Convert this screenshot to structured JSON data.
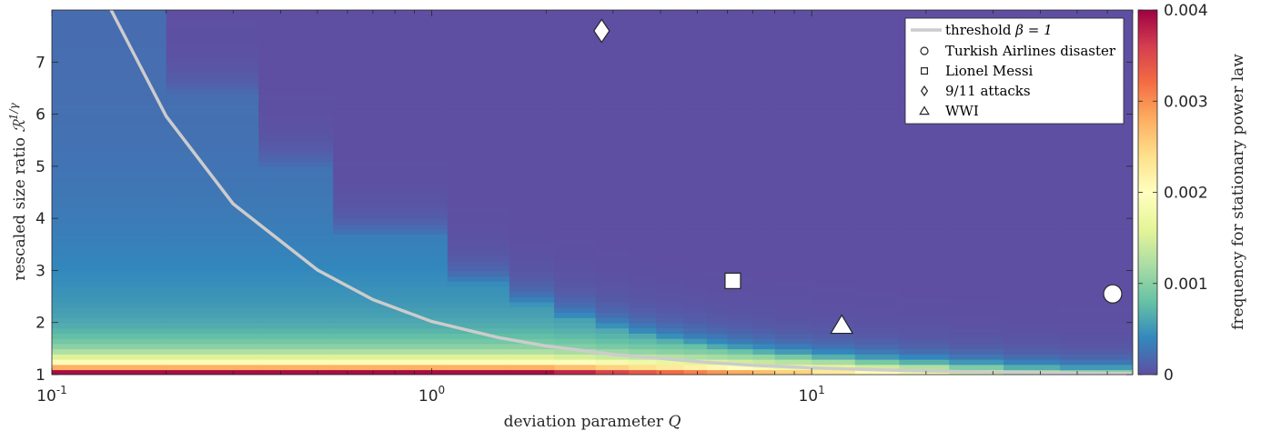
{
  "chart_data": {
    "type": "heatmap",
    "xscale": "log",
    "xlim": [
      0.1,
      70
    ],
    "ylim": [
      1,
      8
    ],
    "xlabel": "deviation parameter Q",
    "ylabel": "rescaled size ratio ℛ^{1/γ}",
    "x_ticks": [
      {
        "value": 0.1,
        "base": "10",
        "exp": "-1"
      },
      {
        "value": 1,
        "base": "10",
        "exp": "0"
      },
      {
        "value": 10,
        "base": "10",
        "exp": "1"
      }
    ],
    "y_ticks": [
      {
        "value": 1,
        "label": "1"
      },
      {
        "value": 2,
        "label": "2"
      },
      {
        "value": 3,
        "label": "3"
      },
      {
        "value": 4,
        "label": "4"
      },
      {
        "value": 5,
        "label": "5"
      },
      {
        "value": 6,
        "label": "6"
      },
      {
        "value": 7,
        "label": "7"
      }
    ],
    "colorbar": {
      "label": "frequency for stationary power law",
      "range": [
        0,
        0.004
      ],
      "colormap": "spectral",
      "ticks": [
        {
          "value": 0,
          "label": "0"
        },
        {
          "value": 0.001,
          "label": "0.001"
        },
        {
          "value": 0.002,
          "label": "0.002"
        },
        {
          "value": 0.003,
          "label": "0.003"
        },
        {
          "value": 0.004,
          "label": "0.004"
        }
      ]
    },
    "threshold_curve": {
      "label": "threshold β = 1",
      "label_prefix": "threshold ",
      "label_math": "β = 1",
      "color": "#cccccc",
      "x": [
        0.14,
        0.2,
        0.3,
        0.5,
        0.7,
        1,
        1.5,
        2,
        3,
        5,
        7,
        10,
        15,
        20,
        30,
        50,
        70
      ],
      "y": [
        8.14,
        5.96,
        4.28,
        3.01,
        2.44,
        2.02,
        1.71,
        1.55,
        1.39,
        1.25,
        1.18,
        1.13,
        1.09,
        1.07,
        1.05,
        1.03,
        1.02
      ]
    },
    "series": [
      {
        "name": "Turkish Airlines disaster",
        "marker": "circle",
        "x": 62,
        "y": 2.55
      },
      {
        "name": "Lionel Messi",
        "marker": "square",
        "x": 6.2,
        "y": 2.8
      },
      {
        "name": "9/11 attacks",
        "marker": "diamond",
        "x": 2.8,
        "y": 7.6
      },
      {
        "name": "WWI",
        "marker": "triangle",
        "x": 12,
        "y": 1.95
      }
    ],
    "legend_position": "top-right"
  }
}
